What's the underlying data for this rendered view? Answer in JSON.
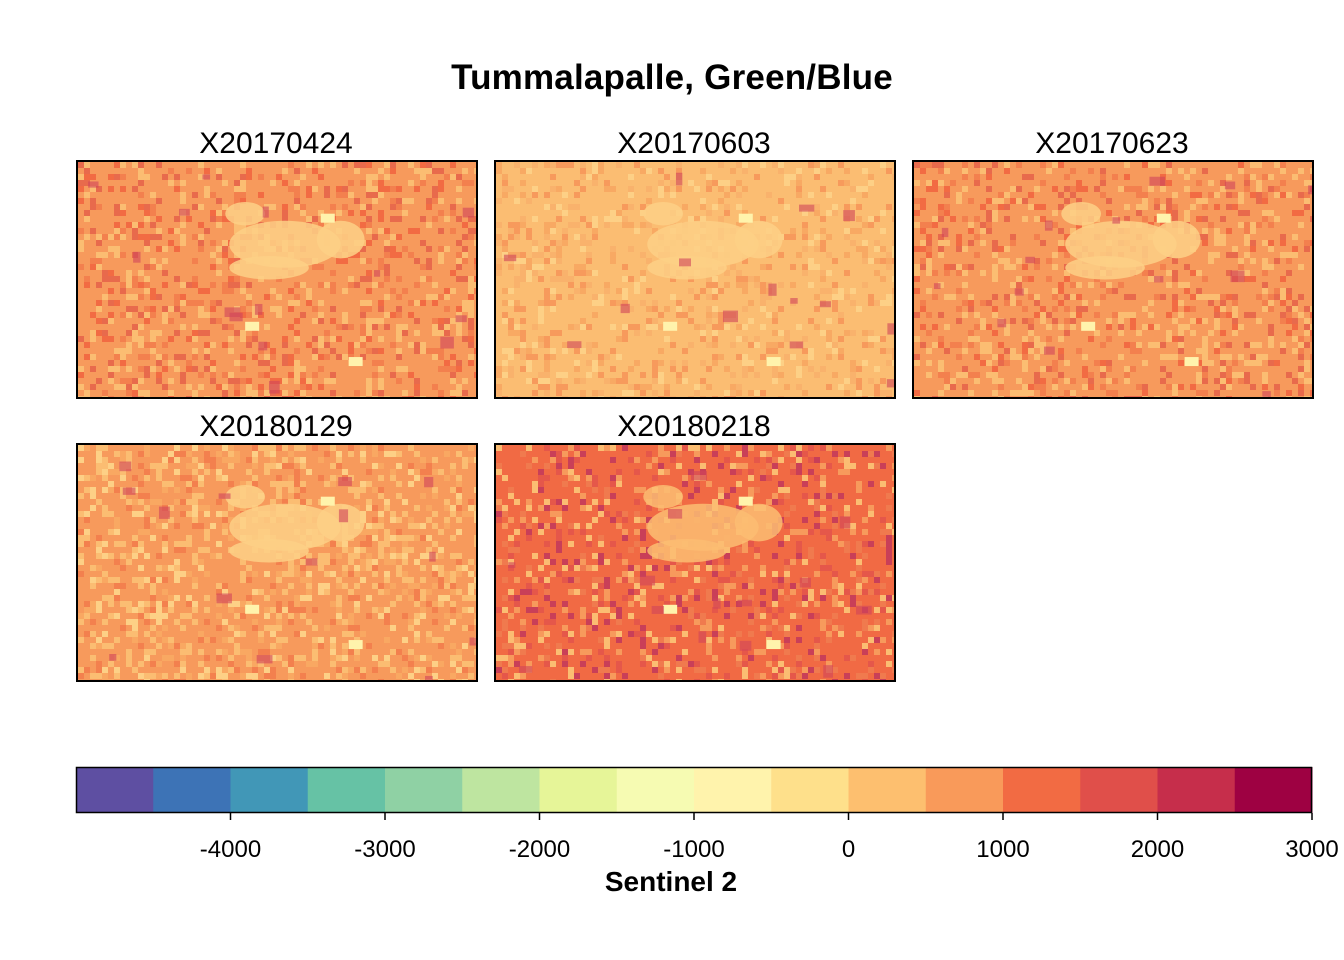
{
  "title": "Tummalapalle, Green/Blue",
  "panels": [
    {
      "name": "X20170424",
      "base": "#f79a5c",
      "style": "mixed"
    },
    {
      "name": "X20170603",
      "base": "#fbbd72",
      "style": "light"
    },
    {
      "name": "X20170623",
      "base": "#f79a5c",
      "style": "mixed"
    },
    {
      "name": "X20180129",
      "base": "#f79a5c",
      "style": "lightish"
    },
    {
      "name": "X20180218",
      "base": "#f16a44",
      "style": "dark"
    }
  ],
  "chart_data": {
    "type": "heatmap",
    "title": "Tummalapalle, Green/Blue",
    "panels": [
      "X20170424",
      "X20170603",
      "X20170623",
      "X20180129",
      "X20180218"
    ],
    "colorbar": {
      "label": "Sentinel 2",
      "range": [
        -5000,
        3000
      ],
      "ticks": [
        -4000,
        -3000,
        -2000,
        -1000,
        0,
        1000,
        2000,
        3000
      ],
      "tick_labels": [
        "-4000",
        "-3000",
        "-2000",
        "-1000",
        "0",
        "1000",
        "2000",
        "3000"
      ],
      "colors": [
        "#5e4fa2",
        "#3d73b6",
        "#4197b7",
        "#66c2a5",
        "#8fd1a4",
        "#bee5a0",
        "#e6f598",
        "#f6fbb2",
        "#fff3ac",
        "#fee08b",
        "#fdbf6f",
        "#f99a5a",
        "#f26b43",
        "#e04f4a",
        "#c62e4b",
        "#9e0142"
      ]
    }
  }
}
